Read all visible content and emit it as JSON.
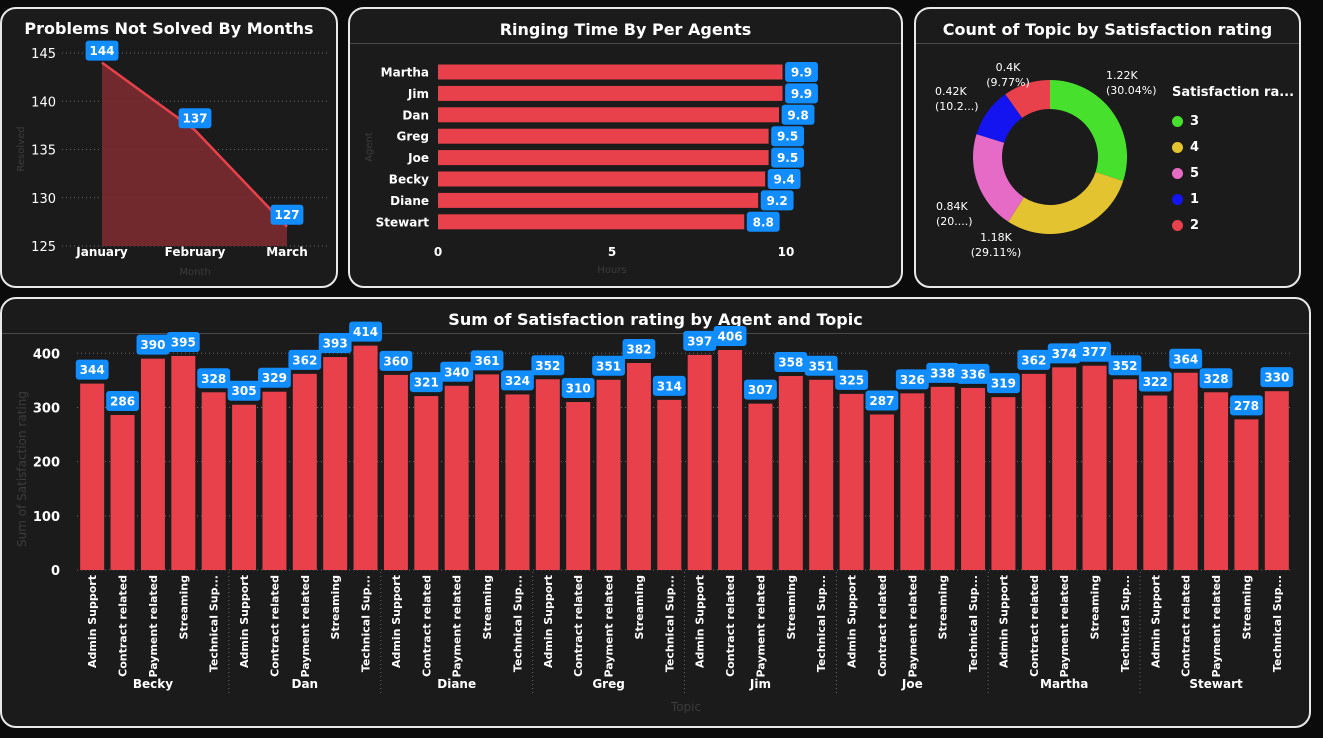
{
  "colors": {
    "bar": "#e8414b",
    "label_bg": "#118dff",
    "panel": "#1b1b1b",
    "border": "#e9e9e9",
    "text": "#ffffff",
    "muted": "#3c3c3c"
  },
  "panels": {
    "problems": {
      "title": "Problems Not Solved By Months"
    },
    "ringing": {
      "title": "Ringing Time By Per Agents"
    },
    "satisfaction_count": {
      "title": "Count of Topic by Satisfaction rating"
    },
    "sum_rating": {
      "title": "Sum of Satisfaction rating by Agent and Topic"
    }
  },
  "chart_data": [
    {
      "id": "problems",
      "type": "area",
      "title": "Problems Not Solved By Months",
      "categories": [
        "January",
        "February",
        "March"
      ],
      "values": [
        144,
        137,
        127
      ],
      "ylim": [
        125,
        145
      ],
      "yticks": [
        125,
        130,
        135,
        140,
        145
      ],
      "xlabel": "Month",
      "ylabel": "Resolved",
      "grid": true
    },
    {
      "id": "ringing",
      "type": "bar",
      "orientation": "horizontal",
      "title": "Ringing Time By Per Agents",
      "categories": [
        "Martha",
        "Jim",
        "Dan",
        "Greg",
        "Joe",
        "Becky",
        "Diane",
        "Stewart"
      ],
      "values": [
        9.9,
        9.9,
        9.8,
        9.5,
        9.5,
        9.4,
        9.2,
        8.8
      ],
      "xlim": [
        0,
        11
      ],
      "xticks": [
        0,
        5,
        10
      ],
      "xlabel": "Hours",
      "ylabel": "Agent",
      "grid": false
    },
    {
      "id": "satisfaction_count",
      "type": "pie",
      "donut": true,
      "title": "Count of Topic by Satisfaction rating",
      "legend_title": "Satisfaction ra...",
      "legend_position": "right",
      "slices": [
        {
          "name": "3",
          "value": 1.22,
          "label": "1.22K",
          "pct": "(30.04%)",
          "color": "#47e12d"
        },
        {
          "name": "4",
          "value": 1.18,
          "label": "1.18K",
          "pct": "(29.11%)",
          "color": "#e3c430"
        },
        {
          "name": "5",
          "value": 0.84,
          "label": "0.84K",
          "pct": "(20....)",
          "color": "#e66bc6"
        },
        {
          "name": "1",
          "value": 0.42,
          "label": "0.42K",
          "pct": "(10.2...)",
          "color": "#1414f0"
        },
        {
          "name": "2",
          "value": 0.4,
          "label": "0.4K",
          "pct": "(9.77%)",
          "color": "#e8414b"
        }
      ]
    },
    {
      "id": "sum_rating",
      "type": "bar",
      "title": "Sum of Satisfaction rating by Agent and Topic",
      "xlabel": "Topic",
      "ylabel": "Sum of Satisfaction rating",
      "ylim": [
        0,
        430
      ],
      "yticks": [
        0,
        100,
        200,
        300,
        400
      ],
      "grid": true,
      "topics": [
        "Admin Support",
        "Contract related",
        "Payment related",
        "Streaming",
        "Technical Sup..."
      ],
      "groups": [
        {
          "agent": "Becky",
          "values": [
            344,
            286,
            390,
            395,
            328
          ]
        },
        {
          "agent": "Dan",
          "values": [
            305,
            329,
            362,
            393,
            414
          ]
        },
        {
          "agent": "Diane",
          "values": [
            360,
            321,
            340,
            361,
            324
          ]
        },
        {
          "agent": "Greg",
          "values": [
            352,
            310,
            351,
            382,
            314
          ]
        },
        {
          "agent": "Jim",
          "values": [
            397,
            406,
            307,
            358,
            351
          ]
        },
        {
          "agent": "Joe",
          "values": [
            325,
            287,
            326,
            338,
            336
          ]
        },
        {
          "agent": "Martha",
          "values": [
            319,
            362,
            374,
            377,
            352
          ]
        },
        {
          "agent": "Stewart",
          "values": [
            322,
            364,
            328,
            278,
            330
          ]
        }
      ]
    }
  ]
}
